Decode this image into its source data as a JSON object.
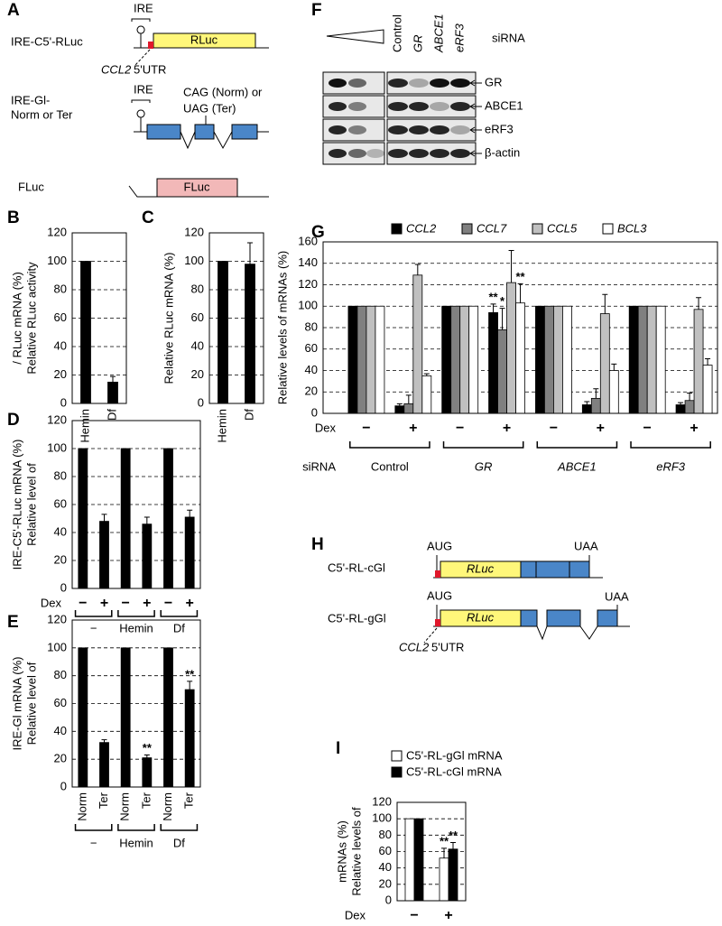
{
  "diagram_a": {
    "label": "A",
    "constructs": [
      {
        "name": "IRE-C5'-RLuc",
        "ire": "IRE",
        "box": "RLuc",
        "utr_gene": "CCL2",
        "utr": "5'UTR"
      },
      {
        "name": [
          "IRE-Gl-",
          "Norm or Ter"
        ],
        "ire": "IRE",
        "codon": [
          "CAG (Norm) or",
          "UAG (Ter)"
        ]
      },
      {
        "name": "FLuc",
        "box": "FLuc"
      }
    ]
  },
  "blot_f": {
    "label": "F",
    "row_label": "siRNA",
    "lanes": [
      "Control",
      "GR",
      "ABCE1",
      "eRF3"
    ],
    "proteins": [
      "GR",
      "ABCE1",
      "eRF3",
      "β-actin"
    ]
  },
  "diagram_h": {
    "label": "H",
    "constructs": [
      {
        "name": "C5'-RL-cGl",
        "start": "AUG",
        "box": "RLuc",
        "stop": "UAA"
      },
      {
        "name": "C5'-RL-gGl",
        "start": "AUG",
        "box": "RLuc",
        "stop": "UAA"
      }
    ],
    "utr_gene": "CCL2",
    "utr": "5'UTR"
  },
  "chart_data": [
    {
      "type": "bar",
      "label": "B",
      "y_label": [
        "Relative RLuc activity",
        "/ RLuc mRNA (%)"
      ],
      "categories": [
        "Hemin",
        "Df"
      ],
      "values": [
        100,
        15
      ],
      "errors": [
        null,
        4
      ],
      "color": "#000000",
      "ylim": [
        0,
        120
      ],
      "yticks": [
        0,
        20,
        40,
        60,
        80,
        100,
        120
      ],
      "grid": true
    },
    {
      "type": "bar",
      "label": "C",
      "y_label": [
        "Relative RLuc mRNA (%)"
      ],
      "categories": [
        "Hemin",
        "Df"
      ],
      "values": [
        100,
        98
      ],
      "errors": [
        null,
        15
      ],
      "color": "#000000",
      "ylim": [
        0,
        120
      ],
      "yticks": [
        0,
        20,
        40,
        60,
        80,
        100,
        120
      ],
      "grid": true
    },
    {
      "type": "bar",
      "label": "D",
      "y_label": [
        "Relative  level of",
        "IRE-C5'-RLuc mRNA (%)"
      ],
      "categories": [
        "−",
        "+",
        "−",
        "+",
        "−",
        "+"
      ],
      "x_row_label": "Dex",
      "groups": [
        "−",
        "Hemin",
        "Df"
      ],
      "values": [
        100,
        48,
        100,
        46,
        100,
        51
      ],
      "errors": [
        null,
        5,
        null,
        5,
        null,
        5
      ],
      "color": "#000000",
      "ylim": [
        0,
        120
      ],
      "yticks": [
        0,
        20,
        40,
        60,
        80,
        100,
        120
      ],
      "grid": true
    },
    {
      "type": "bar",
      "label": "E",
      "y_label": [
        "Relative  level of",
        "IRE-Gl mRNA (%)"
      ],
      "categories": [
        "Norm",
        "Ter",
        "Norm",
        "Ter",
        "Norm",
        "Ter"
      ],
      "groups": [
        "−",
        "Hemin",
        "Df"
      ],
      "values": [
        100,
        32,
        100,
        21,
        100,
        70
      ],
      "errors": [
        null,
        2,
        null,
        2,
        null,
        6
      ],
      "color": "#000000",
      "annotations": [
        {
          "text": "**",
          "index": 3
        },
        {
          "text": "**",
          "index": 5
        }
      ],
      "ylim": [
        0,
        120
      ],
      "yticks": [
        0,
        20,
        40,
        60,
        80,
        100,
        120
      ],
      "grid": true
    },
    {
      "type": "bar",
      "label": "G",
      "y_label": [
        "Relative levels of mRNAs (%)"
      ],
      "categories": [
        "−",
        "+",
        "−",
        "+",
        "−",
        "+",
        "−",
        "+"
      ],
      "x_row_label": "Dex",
      "group_row_label": "siRNA",
      "groups": [
        "Control",
        "GR",
        "ABCE1",
        "eRF3"
      ],
      "group_italic": [
        false,
        true,
        true,
        true
      ],
      "series": [
        {
          "name": "CCL2",
          "color": "#000000",
          "values": [
            100,
            7,
            100,
            94,
            100,
            8,
            100,
            8
          ],
          "errors": [
            null,
            2,
            null,
            8,
            null,
            3,
            null,
            2
          ]
        },
        {
          "name": "CCL7",
          "color": "#808080",
          "values": [
            100,
            9,
            100,
            78,
            100,
            14,
            100,
            12
          ],
          "errors": [
            null,
            8,
            null,
            20,
            null,
            9,
            null,
            7
          ]
        },
        {
          "name": "CCL5",
          "color": "#c0c0c0",
          "values": [
            100,
            129,
            100,
            122,
            100,
            93,
            100,
            97
          ],
          "errors": [
            null,
            10,
            null,
            30,
            null,
            18,
            null,
            11
          ]
        },
        {
          "name": "BCL3",
          "color": "#ffffff",
          "values": [
            100,
            35,
            100,
            103,
            100,
            40,
            100,
            45
          ],
          "errors": [
            null,
            2,
            null,
            18,
            null,
            6,
            null,
            6
          ]
        }
      ],
      "annotations": [
        {
          "text": "**",
          "index": 3,
          "series": 0
        },
        {
          "text": "*",
          "index": 3,
          "series": 1
        },
        {
          "text": "**",
          "index": 3,
          "series": 3
        }
      ],
      "ylim": [
        0,
        160
      ],
      "yticks": [
        0,
        20,
        40,
        60,
        80,
        100,
        120,
        140,
        160
      ],
      "grid": true
    },
    {
      "type": "bar",
      "label": "I",
      "y_label": [
        "Relative levels of",
        "mRNAs (%)"
      ],
      "categories": [
        "−",
        "+"
      ],
      "x_row_label": "Dex",
      "series": [
        {
          "name": "C5'-RL-gGl mRNA",
          "color": "#ffffff",
          "values": [
            100,
            52
          ],
          "errors": [
            null,
            12
          ]
        },
        {
          "name": "C5'-RL-cGl mRNA",
          "color": "#000000",
          "values": [
            100,
            63
          ],
          "errors": [
            null,
            8
          ]
        }
      ],
      "annotations": [
        {
          "text": "**",
          "index": 1,
          "series": 0
        },
        {
          "text": "**",
          "index": 1,
          "series": 1
        }
      ],
      "ylim": [
        0,
        120
      ],
      "yticks": [
        0,
        20,
        40,
        60,
        80,
        100,
        120
      ],
      "grid": true
    }
  ]
}
